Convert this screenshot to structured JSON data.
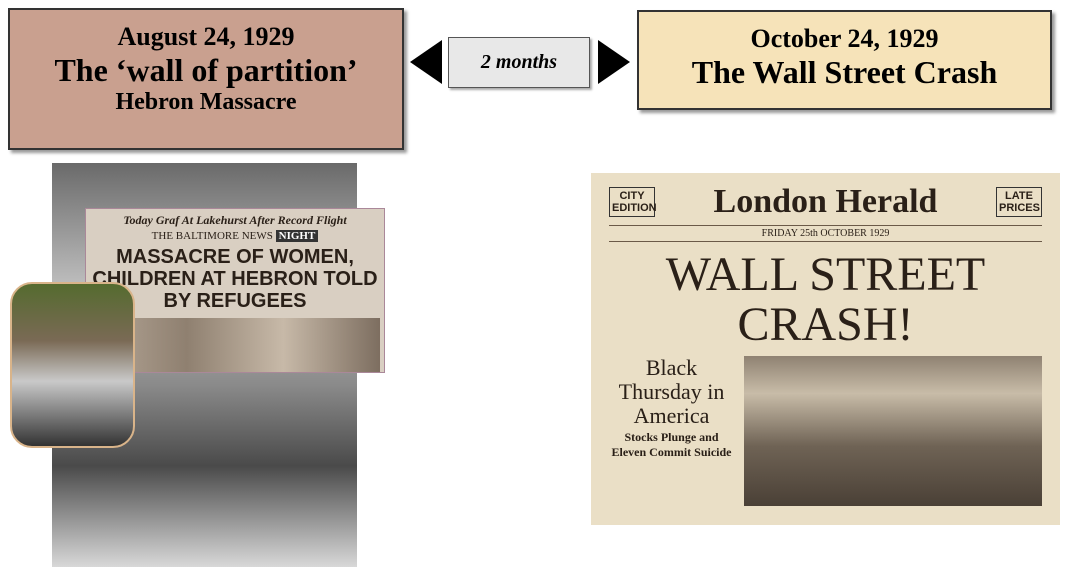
{
  "left_box": {
    "date": "August 24, 1929",
    "title": "The ‘wall of partition’",
    "subtitle": "Hebron Massacre"
  },
  "middle": {
    "label": "2 months"
  },
  "right_box": {
    "date": "October 24, 1929",
    "title": "The Wall Street Crash"
  },
  "baltimore_paper": {
    "top": "Today Graf At Lakehurst After Record Flight",
    "masthead": "THE BALTIMORE NEWS",
    "edition": "NIGHT",
    "headline": "MASSACRE OF WOMEN, CHILDREN AT HEBRON TOLD BY REFUGEES"
  },
  "london_paper": {
    "left_badge": "CITY EDITION",
    "masthead": "London Herald",
    "right_badge": "LATE PRICES",
    "dateline": "FRIDAY 25th OCTOBER 1929",
    "headline": "WALL STREET CRASH!",
    "subhead": "Black Thursday in America",
    "deck": "Stocks Plunge and Eleven Commit Suicide"
  }
}
